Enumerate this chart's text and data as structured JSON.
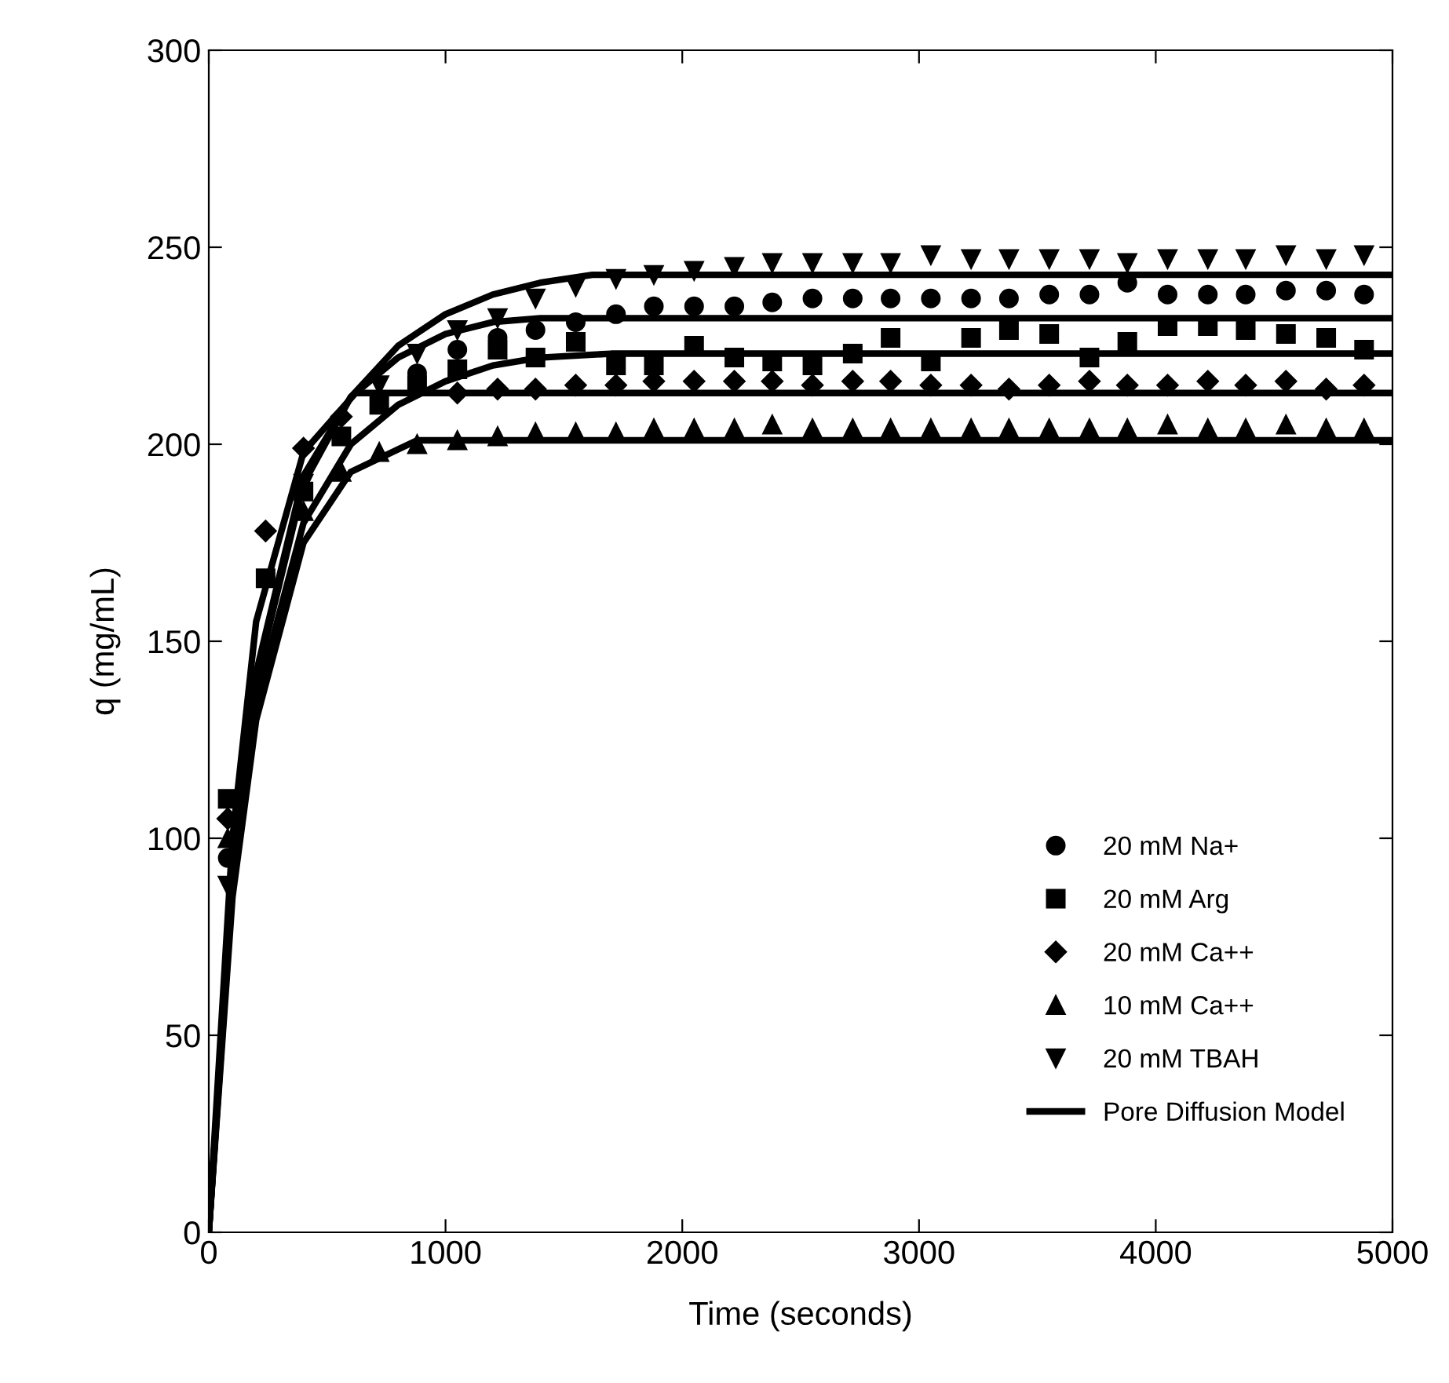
{
  "chart_data": {
    "type": "scatter",
    "xlabel": "Time (seconds)",
    "ylabel": "q (mg/mL)",
    "xlim": [
      0,
      5000
    ],
    "ylim": [
      0,
      300
    ],
    "xticks": [
      0,
      1000,
      2000,
      3000,
      4000,
      5000
    ],
    "yticks": [
      0,
      50,
      100,
      150,
      200,
      250,
      300
    ],
    "grid": false,
    "legend": "bottom right",
    "x": [
      80,
      240,
      400,
      560,
      720,
      880,
      1050,
      1220,
      1380,
      1550,
      1720,
      1880,
      2050,
      2220,
      2380,
      2550,
      2720,
      2880,
      3050,
      3220,
      3380,
      3550,
      3720,
      3880,
      4050,
      4220,
      4380,
      4550,
      4720,
      4880
    ],
    "series": [
      {
        "name": "20 mM Na+",
        "color": "#000000",
        "marker": "circle",
        "values": [
          95,
          null,
          null,
          null,
          null,
          218,
          224,
          227,
          229,
          231,
          233,
          235,
          235,
          235,
          236,
          237,
          237,
          237,
          237,
          237,
          237,
          238,
          238,
          241,
          238,
          238,
          238,
          239,
          239,
          238
        ]
      },
      {
        "name": "20 mM Arg",
        "color": "#000000",
        "marker": "square",
        "values": [
          110,
          166,
          188,
          202,
          210,
          215,
          219,
          224,
          222,
          226,
          220,
          220,
          225,
          222,
          221,
          220,
          223,
          227,
          221,
          227,
          229,
          228,
          222,
          226,
          230,
          230,
          229,
          228,
          227,
          224
        ]
      },
      {
        "name": "20 mM Ca++",
        "color": "#000000",
        "marker": "diamond",
        "values": [
          105,
          178,
          199,
          207,
          null,
          null,
          213,
          214,
          214,
          215,
          215,
          216,
          216,
          216,
          216,
          215,
          216,
          216,
          215,
          215,
          214,
          215,
          216,
          215,
          215,
          216,
          215,
          216,
          214,
          215
        ]
      },
      {
        "name": "10 mM Ca++",
        "color": "#000000",
        "marker": "triangle",
        "values": [
          100,
          null,
          183,
          193,
          198,
          200,
          201,
          202,
          203,
          203,
          203,
          204,
          204,
          204,
          205,
          204,
          204,
          204,
          204,
          204,
          204,
          204,
          204,
          204,
          205,
          204,
          204,
          205,
          204,
          204
        ]
      },
      {
        "name": "20 mM TBAH",
        "color": "#000000",
        "marker": "triangle_down",
        "values": [
          88,
          null,
          190,
          null,
          215,
          223,
          229,
          232,
          237,
          240,
          242,
          243,
          244,
          245,
          246,
          246,
          246,
          246,
          248,
          247,
          247,
          247,
          247,
          246,
          247,
          247,
          247,
          248,
          247,
          248
        ]
      },
      {
        "name": "Pore Diffusion Model",
        "type": "line",
        "color": "#000000",
        "marker": "none",
        "line_style": "solid",
        "x": [
          0,
          100,
          200,
          400,
          600,
          800,
          1000,
          1200,
          1400,
          5000
        ],
        "values": [
          0,
          92,
          142,
          192,
          212,
          222,
          228,
          231,
          232,
          232
        ]
      },
      {
        "type": "line",
        "color": "#000000",
        "marker": "none",
        "line_style": "solid",
        "x": [
          0,
          100,
          200,
          400,
          600,
          800,
          1000,
          1200,
          1400,
          1700,
          5000
        ],
        "values": [
          0,
          88,
          135,
          180,
          200,
          210,
          216,
          220,
          222,
          223,
          223
        ]
      },
      {
        "type": "line",
        "color": "#000000",
        "marker": "none",
        "line_style": "solid",
        "x": [
          0,
          100,
          200,
          400,
          620,
          5000
        ],
        "values": [
          0,
          100,
          155,
          198,
          213,
          213
        ]
      },
      {
        "type": "line",
        "color": "#000000",
        "marker": "none",
        "line_style": "solid",
        "x": [
          0,
          100,
          200,
          400,
          600,
          880,
          5000
        ],
        "values": [
          0,
          85,
          130,
          175,
          193,
          201,
          201
        ]
      },
      {
        "type": "line",
        "color": "#000000",
        "marker": "none",
        "line_style": "solid",
        "x": [
          0,
          100,
          200,
          400,
          600,
          800,
          1000,
          1200,
          1400,
          1620,
          5000
        ],
        "values": [
          0,
          90,
          140,
          190,
          212,
          225,
          233,
          238,
          241,
          243,
          243
        ]
      }
    ]
  }
}
